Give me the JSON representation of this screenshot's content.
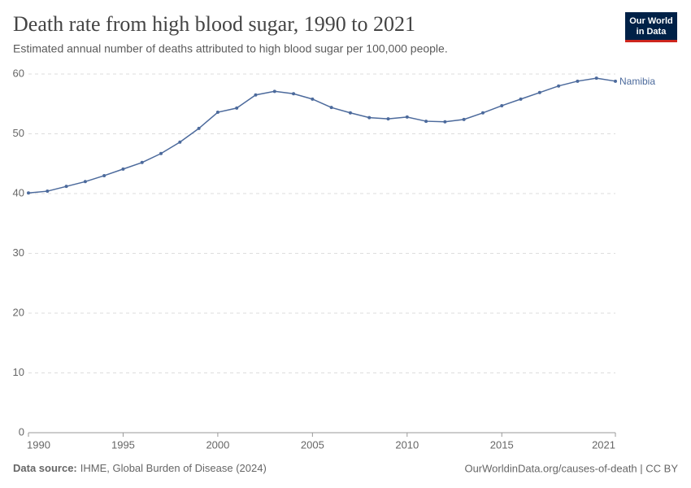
{
  "chart_data": {
    "type": "line",
    "title": "Death rate from high blood sugar, 1990 to 2021",
    "subtitle": "Estimated annual number of deaths attributed to high blood sugar per 100,000 people.",
    "logo": [
      "Our World",
      "in Data"
    ],
    "source_label": "Data source:",
    "source": "IHME, Global Burden of Disease (2024)",
    "license": "OurWorldinData.org/causes-of-death | CC BY",
    "x": [
      1990,
      1991,
      1992,
      1993,
      1994,
      1995,
      1996,
      1997,
      1998,
      1999,
      2000,
      2001,
      2002,
      2003,
      2004,
      2005,
      2006,
      2007,
      2008,
      2009,
      2010,
      2011,
      2012,
      2013,
      2014,
      2015,
      2016,
      2017,
      2018,
      2019,
      2020,
      2021
    ],
    "series": [
      {
        "name": "Namibia",
        "color": "#4c6a9c",
        "values": [
          40.1,
          40.4,
          41.2,
          42.0,
          43.0,
          44.1,
          45.2,
          46.7,
          48.6,
          50.9,
          53.6,
          54.3,
          56.5,
          57.1,
          56.7,
          55.8,
          54.4,
          53.5,
          52.7,
          52.5,
          52.8,
          52.1,
          52.0,
          52.4,
          53.5,
          54.7,
          55.8,
          56.9,
          58.0,
          58.8,
          59.3,
          58.8
        ]
      }
    ],
    "xlim": [
      1990,
      2021
    ],
    "xticks": [
      1990,
      1995,
      2000,
      2005,
      2010,
      2015,
      2021
    ],
    "ylim": [
      0,
      60
    ],
    "yticks": [
      0,
      10,
      20,
      30,
      40,
      50,
      60
    ],
    "grid": true
  }
}
